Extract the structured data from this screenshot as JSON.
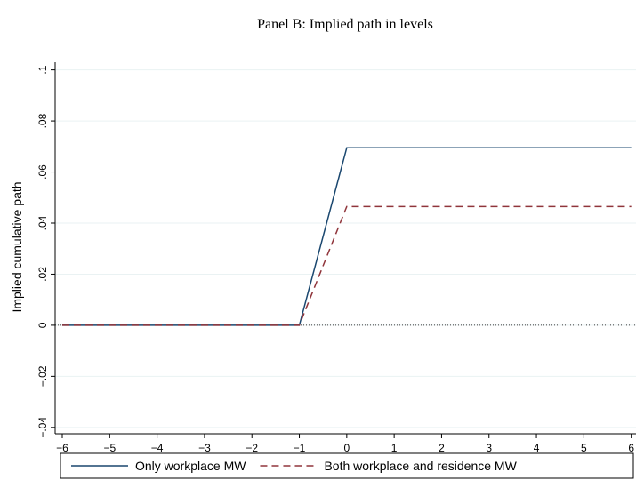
{
  "chart_data": {
    "type": "line",
    "title": "Panel B: Implied path in levels",
    "y_label": "Implied cumulative path",
    "x": [
      -6,
      -5,
      -4,
      -3,
      -2,
      -1,
      0,
      1,
      2,
      3,
      4,
      5,
      6
    ],
    "series": [
      {
        "name": "Only workplace MW",
        "color": "#1a476f",
        "style": "solid",
        "values": [
          0,
          0,
          0,
          0,
          0,
          0,
          0.0695,
          0.0695,
          0.0695,
          0.0695,
          0.0695,
          0.0695,
          0.0695
        ]
      },
      {
        "name": "Both workplace and residence MW",
        "color": "#90353b",
        "style": "dashed",
        "values": [
          0,
          0,
          0,
          0,
          0,
          0,
          0.0465,
          0.0465,
          0.0465,
          0.0465,
          0.0465,
          0.0465,
          0.0465
        ]
      }
    ],
    "xlim": [
      -6.15,
      6.1
    ],
    "xticks": [
      {
        "value": -6,
        "label": "−6"
      },
      {
        "value": -5,
        "label": "−5"
      },
      {
        "value": -4,
        "label": "−4"
      },
      {
        "value": -3,
        "label": "−3"
      },
      {
        "value": -2,
        "label": "−2"
      },
      {
        "value": -1,
        "label": "−1"
      },
      0,
      1,
      2,
      3,
      4,
      5,
      6
    ],
    "ylim": [
      -0.0425,
      0.103
    ],
    "yticks": [
      {
        "value": -0.04,
        "label": "−.04"
      },
      {
        "value": -0.02,
        "label": "−.02"
      },
      0,
      {
        "value": 0.02,
        "label": ".02"
      },
      {
        "value": 0.04,
        "label": ".04"
      },
      {
        "value": 0.06,
        "label": ".06"
      },
      {
        "value": 0.08,
        "label": ".08"
      },
      {
        "value": 0.1,
        "label": ".1"
      }
    ],
    "grid": true,
    "zero_line": true,
    "legend": "bottom"
  }
}
